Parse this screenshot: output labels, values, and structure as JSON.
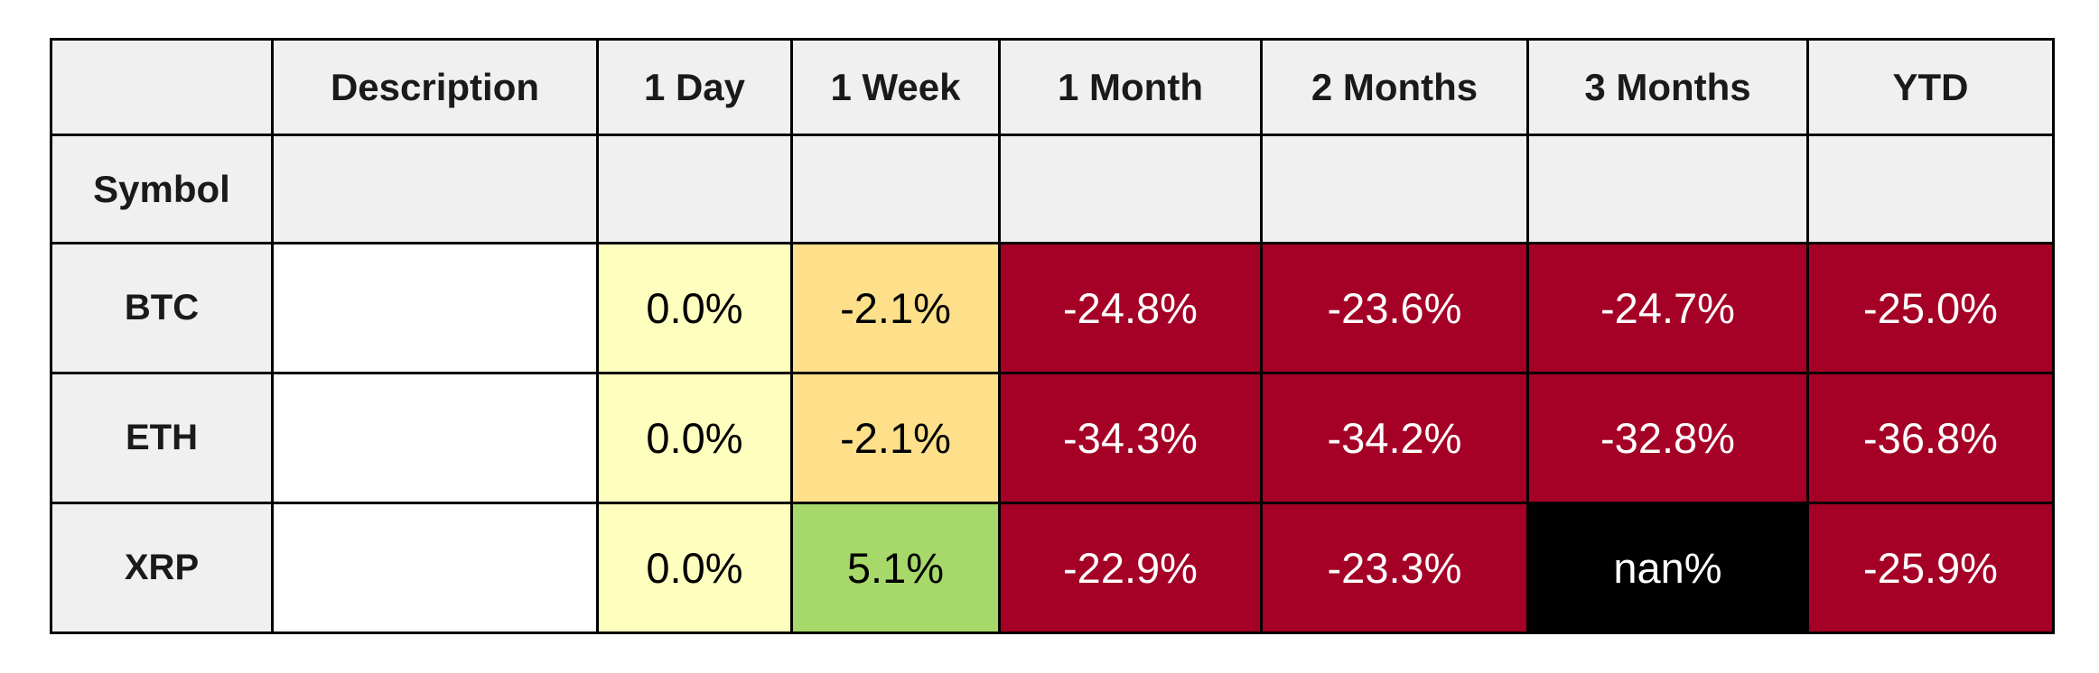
{
  "chart_data": {
    "type": "table",
    "columns": [
      "",
      "Description",
      "1 Day",
      "1 Week",
      "1 Month",
      "2 Months",
      "3 Months",
      "YTD"
    ],
    "index_name": "Symbol",
    "rows": [
      {
        "symbol": "BTC",
        "cells": [
          {
            "text": "",
            "bg": "#ffffff",
            "fg": "#000000"
          },
          {
            "text": "0.0%",
            "bg": "#feffbe",
            "fg": "#000000"
          },
          {
            "text": "-2.1%",
            "bg": "#fee08b",
            "fg": "#000000"
          },
          {
            "text": "-24.8%",
            "bg": "#a50026",
            "fg": "#ffffff"
          },
          {
            "text": "-23.6%",
            "bg": "#a50026",
            "fg": "#ffffff"
          },
          {
            "text": "-24.7%",
            "bg": "#a50026",
            "fg": "#ffffff"
          },
          {
            "text": "-25.0%",
            "bg": "#a50026",
            "fg": "#ffffff"
          }
        ]
      },
      {
        "symbol": "ETH",
        "cells": [
          {
            "text": "",
            "bg": "#ffffff",
            "fg": "#000000"
          },
          {
            "text": "0.0%",
            "bg": "#feffbe",
            "fg": "#000000"
          },
          {
            "text": "-2.1%",
            "bg": "#fee08b",
            "fg": "#000000"
          },
          {
            "text": "-34.3%",
            "bg": "#a50026",
            "fg": "#ffffff"
          },
          {
            "text": "-34.2%",
            "bg": "#a50026",
            "fg": "#ffffff"
          },
          {
            "text": "-32.8%",
            "bg": "#a50026",
            "fg": "#ffffff"
          },
          {
            "text": "-36.8%",
            "bg": "#a50026",
            "fg": "#ffffff"
          }
        ]
      },
      {
        "symbol": "XRP",
        "cells": [
          {
            "text": "",
            "bg": "#ffffff",
            "fg": "#000000"
          },
          {
            "text": "0.0%",
            "bg": "#feffbe",
            "fg": "#000000"
          },
          {
            "text": "5.1%",
            "bg": "#a6d96a",
            "fg": "#000000"
          },
          {
            "text": "-22.9%",
            "bg": "#a50026",
            "fg": "#ffffff"
          },
          {
            "text": "-23.3%",
            "bg": "#a50026",
            "fg": "#ffffff"
          },
          {
            "text": "nan%",
            "bg": "#000000",
            "fg": "#ffffff"
          },
          {
            "text": "-25.9%",
            "bg": "#a50026",
            "fg": "#ffffff"
          }
        ]
      }
    ],
    "styles": {
      "header_bg": "#f0f0f0",
      "border_color": "#000000",
      "positive_color": "#a6d96a",
      "neutral_color": "#feffbe",
      "slight_negative_color": "#fee08b",
      "strong_negative_color": "#a50026",
      "nan_color": "#000000"
    }
  }
}
